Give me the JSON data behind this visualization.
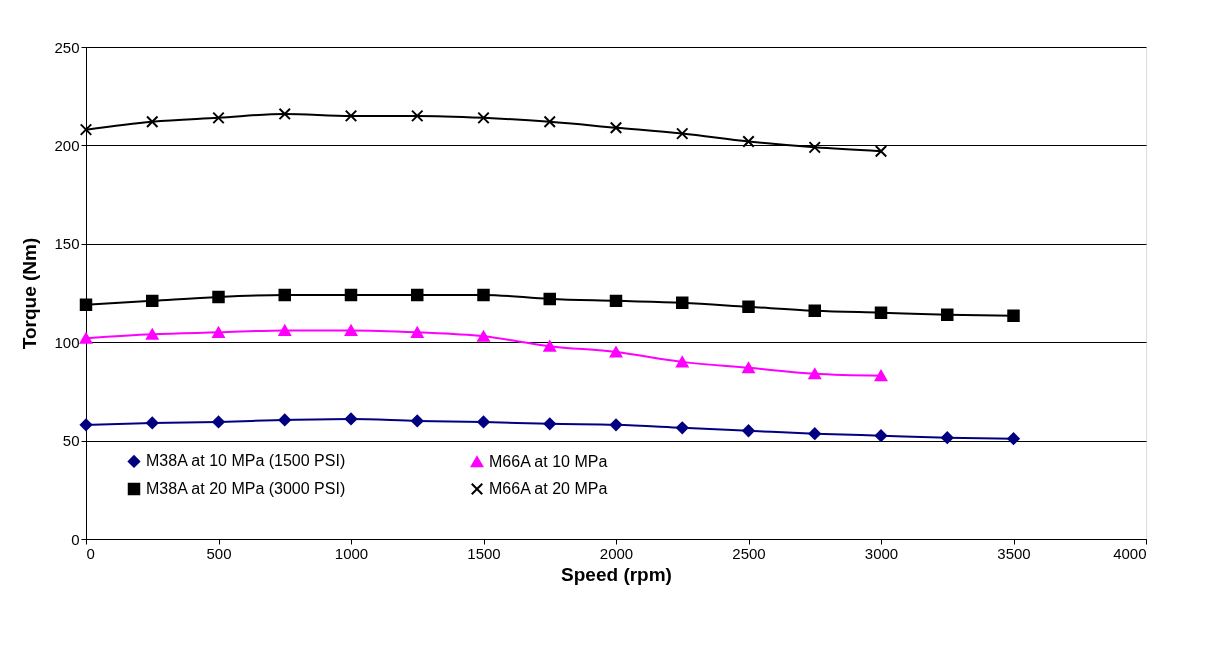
{
  "chart_data": {
    "type": "line",
    "xlabel": "Speed (rpm)",
    "ylabel": "Torque (Nm)",
    "x": [
      0,
      250,
      500,
      750,
      1000,
      1250,
      1500,
      1750,
      2000,
      2250,
      2500,
      2750,
      3000,
      3250,
      3500
    ],
    "series": [
      {
        "name": "M38A at 10 MPa (1500 PSI)",
        "color": "#000080",
        "marker": "diamond",
        "values": [
          58,
          59,
          59.5,
          60.5,
          61,
          60,
          59.5,
          58.5,
          58,
          56.5,
          55,
          53.5,
          52.5,
          51.5,
          51
        ]
      },
      {
        "name": "M66A at 10 MPa",
        "color": "#ff00ff",
        "marker": "triangle",
        "values": [
          102,
          104,
          105,
          106,
          106,
          105,
          103,
          98,
          95,
          90,
          87,
          84,
          83,
          null,
          null
        ]
      },
      {
        "name": "M38A at 20 MPa (3000 PSI)",
        "color": "#000000",
        "marker": "square",
        "values": [
          119,
          121,
          123,
          124,
          124,
          124,
          124,
          122,
          121,
          120,
          118,
          116,
          115,
          114,
          113.5
        ]
      },
      {
        "name": "M66A at 20 MPa",
        "color": "#000000",
        "marker": "cross",
        "values": [
          208,
          212,
          214,
          216,
          215,
          215,
          214,
          212,
          209,
          206,
          202,
          199,
          197,
          null,
          null
        ]
      }
    ],
    "xlim": [
      0,
      4000
    ],
    "xticks": [
      0,
      500,
      1000,
      1500,
      2000,
      2500,
      3000,
      3500,
      4000
    ],
    "ylim": [
      0,
      250
    ],
    "yticks": [
      0,
      50,
      100,
      150,
      200,
      250
    ],
    "grid": "y",
    "legend": "bottom left",
    "line_style": "solid"
  }
}
